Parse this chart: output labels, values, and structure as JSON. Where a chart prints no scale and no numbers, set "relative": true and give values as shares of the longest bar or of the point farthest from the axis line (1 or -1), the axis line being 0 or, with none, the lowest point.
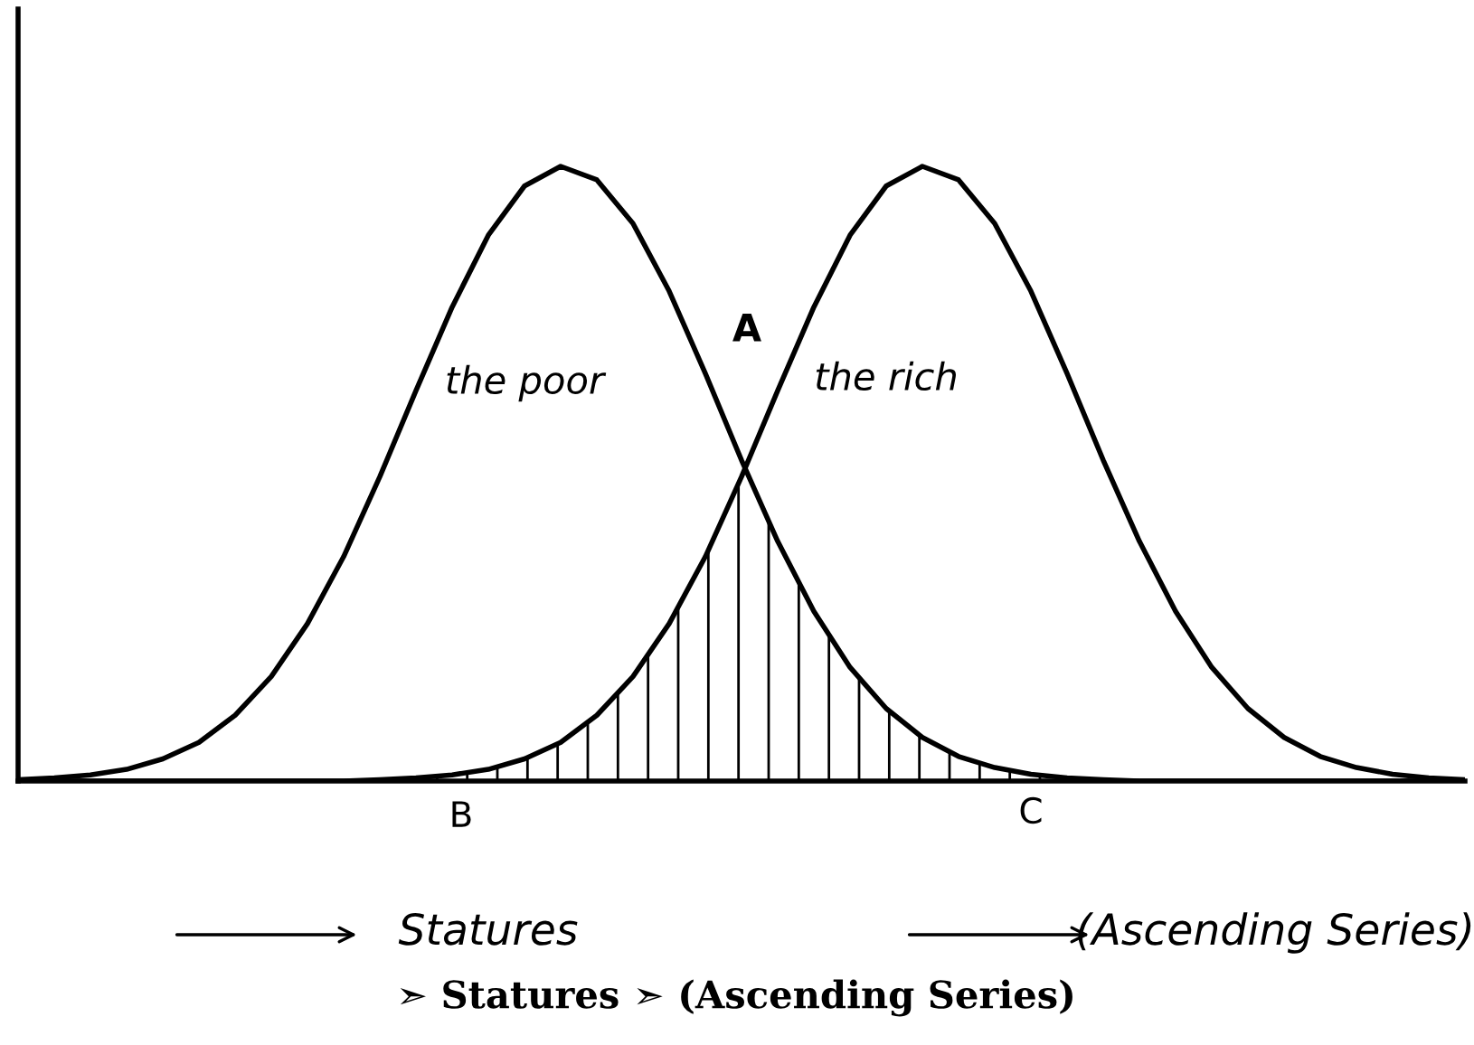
{
  "chart_data": {
    "type": "line",
    "relative": true,
    "categories": [
      null,
      null,
      null,
      null,
      null,
      null,
      null,
      null,
      null,
      null,
      null,
      null,
      null,
      null,
      null,
      null,
      null,
      null,
      null,
      null,
      null,
      null,
      null,
      null,
      null,
      null,
      null,
      null,
      null,
      null,
      null,
      null,
      null,
      null,
      null,
      null,
      null,
      null,
      null,
      null,
      null
    ],
    "series": [
      {
        "color": "#000000",
        "values": [
          0.002,
          0.005,
          0.01,
          0.019,
          0.036,
          0.063,
          0.107,
          0.17,
          0.256,
          0.365,
          0.495,
          0.635,
          0.771,
          0.888,
          0.968,
          1.0,
          0.978,
          0.907,
          0.797,
          0.663,
          0.522,
          0.39,
          0.276,
          0.185,
          0.118,
          0.071,
          0.04,
          0.022,
          0.011,
          0.005,
          0.002,
          0,
          0,
          0,
          0,
          0,
          0,
          0,
          0,
          0,
          0
        ]
      },
      {
        "color": "#000000",
        "values": [
          0,
          0,
          0,
          0,
          0,
          0,
          0,
          0,
          0,
          0,
          0.002,
          0.005,
          0.01,
          0.019,
          0.036,
          0.063,
          0.107,
          0.17,
          0.256,
          0.365,
          0.495,
          0.635,
          0.771,
          0.888,
          0.968,
          1.0,
          0.978,
          0.907,
          0.797,
          0.663,
          0.522,
          0.39,
          0.276,
          0.185,
          0.118,
          0.071,
          0.04,
          0.022,
          0.011,
          0.005,
          0.002
        ]
      },
      {
        "type": "area",
        "color": "#000000",
        "values": [
          0,
          0,
          0,
          0,
          0,
          0,
          0,
          0,
          0,
          0,
          0.002,
          0.005,
          0.01,
          0.019,
          0.036,
          0.063,
          0.107,
          0.17,
          0.256,
          0.365,
          0.495,
          0.39,
          0.276,
          0.185,
          0.118,
          0.071,
          0.04,
          0.022,
          0.011,
          0.005,
          0.002,
          0,
          0,
          0,
          0,
          0,
          0,
          0,
          0,
          0,
          0
        ]
      }
    ],
    "annotations": [
      "the poor",
      "the rich",
      "A",
      "B",
      "C",
      "Statures",
      "(Ascending Series)",
      "➣ Statures ➣ (Ascending Series)"
    ],
    "legend": false,
    "tick_labels": false
  }
}
